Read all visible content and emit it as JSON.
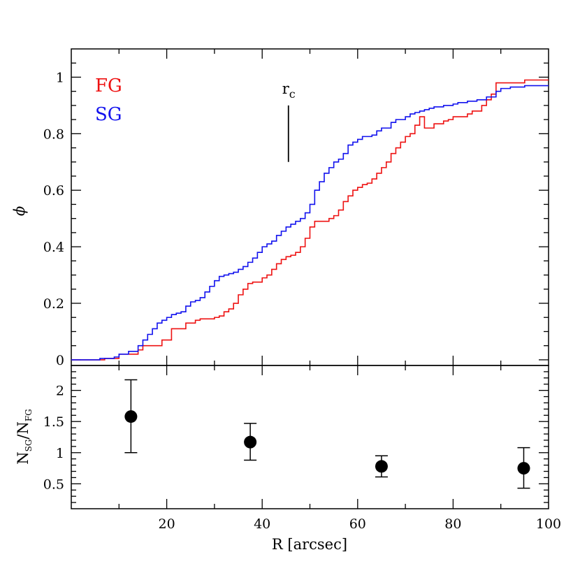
{
  "chart_data": [
    {
      "type": "line",
      "panel": "top",
      "ylabel": "ϕ",
      "xlim": [
        0,
        100
      ],
      "ylim": [
        -0.02,
        1.1
      ],
      "x_ticks": [
        20,
        40,
        60,
        80,
        100
      ],
      "y_ticks": [
        0,
        0.2,
        0.4,
        0.6,
        0.8,
        1
      ],
      "y_tick_labels": [
        "0",
        "0.2",
        "0.4",
        "0.6",
        "0.8",
        "1"
      ],
      "legend_placement": "top-left",
      "annotation": {
        "label_main": "r",
        "label_sub": "c",
        "x": 45.5,
        "y_from": 0.7,
        "y_to": 0.9
      },
      "series": [
        {
          "name": "FG",
          "color": "#ee1111",
          "step": true,
          "x": [
            0,
            7,
            10,
            14,
            15,
            19,
            21,
            24,
            26,
            27,
            30,
            31,
            32,
            33,
            34,
            35,
            36,
            37,
            38,
            40,
            41,
            42,
            43,
            44,
            45,
            46,
            47,
            48,
            49,
            50,
            51,
            54,
            55,
            56,
            57,
            58,
            59,
            60,
            61,
            62,
            63,
            64,
            65,
            66,
            67,
            68,
            69,
            70,
            71,
            72,
            73,
            74,
            76,
            78,
            79,
            80,
            83,
            84,
            86,
            87,
            88,
            89,
            92,
            95,
            100
          ],
          "y": [
            0,
            0.005,
            0.02,
            0.035,
            0.05,
            0.07,
            0.11,
            0.13,
            0.14,
            0.145,
            0.15,
            0.155,
            0.17,
            0.18,
            0.2,
            0.23,
            0.25,
            0.27,
            0.275,
            0.29,
            0.3,
            0.32,
            0.34,
            0.355,
            0.365,
            0.37,
            0.38,
            0.4,
            0.43,
            0.47,
            0.49,
            0.5,
            0.51,
            0.53,
            0.56,
            0.58,
            0.6,
            0.61,
            0.62,
            0.625,
            0.64,
            0.66,
            0.68,
            0.7,
            0.73,
            0.75,
            0.77,
            0.79,
            0.8,
            0.83,
            0.86,
            0.82,
            0.835,
            0.845,
            0.85,
            0.86,
            0.87,
            0.88,
            0.9,
            0.92,
            0.94,
            0.98,
            0.98,
            0.99,
            0.99
          ]
        },
        {
          "name": "SG",
          "color": "#1111ee",
          "step": true,
          "x": [
            0,
            6,
            9,
            10,
            12,
            14,
            15,
            16,
            17,
            18,
            19,
            20,
            21,
            22,
            23,
            24,
            25,
            26,
            27,
            28,
            29,
            30,
            31,
            32,
            33,
            34,
            35,
            36,
            37,
            38,
            39,
            40,
            41,
            42,
            43,
            44,
            45,
            46,
            47,
            48,
            49,
            50,
            51,
            52,
            53,
            54,
            55,
            56,
            57,
            58,
            59,
            60,
            61,
            63,
            64,
            65,
            67,
            68,
            70,
            71,
            72,
            73,
            74,
            75,
            76,
            78,
            80,
            81,
            83,
            85,
            87,
            89,
            90,
            92,
            95,
            100
          ],
          "y": [
            0,
            0.005,
            0.01,
            0.02,
            0.03,
            0.05,
            0.07,
            0.09,
            0.11,
            0.13,
            0.14,
            0.15,
            0.16,
            0.165,
            0.17,
            0.19,
            0.205,
            0.21,
            0.22,
            0.24,
            0.26,
            0.28,
            0.295,
            0.3,
            0.305,
            0.31,
            0.32,
            0.33,
            0.345,
            0.36,
            0.38,
            0.4,
            0.41,
            0.42,
            0.44,
            0.455,
            0.47,
            0.48,
            0.49,
            0.5,
            0.52,
            0.55,
            0.6,
            0.63,
            0.66,
            0.68,
            0.7,
            0.71,
            0.73,
            0.76,
            0.77,
            0.78,
            0.79,
            0.795,
            0.81,
            0.82,
            0.84,
            0.85,
            0.86,
            0.87,
            0.875,
            0.88,
            0.885,
            0.89,
            0.895,
            0.9,
            0.905,
            0.91,
            0.915,
            0.92,
            0.93,
            0.95,
            0.96,
            0.965,
            0.97,
            0.97
          ]
        }
      ]
    },
    {
      "type": "scatter",
      "panel": "bottom",
      "xlabel": "R [arcsec]",
      "ylabel_main": "N",
      "ylabel_sub1": "SG",
      "ylabel_sep": "/N",
      "ylabel_sub2": "FG",
      "xlim": [
        0,
        100
      ],
      "ylim": [
        0.1,
        2.4
      ],
      "x_ticks": [
        20,
        40,
        60,
        80,
        100
      ],
      "x_tick_labels": [
        "20",
        "40",
        "60",
        "80",
        "100"
      ],
      "y_ticks": [
        0.5,
        1,
        1.5,
        2
      ],
      "y_tick_labels": [
        "0.5",
        "1",
        "1.5",
        "2"
      ],
      "points": [
        {
          "x": 12.5,
          "y": 1.58,
          "y_low": 1.0,
          "y_high": 2.17
        },
        {
          "x": 37.5,
          "y": 1.17,
          "y_low": 0.88,
          "y_high": 1.47
        },
        {
          "x": 65.0,
          "y": 0.78,
          "y_low": 0.61,
          "y_high": 0.95
        },
        {
          "x": 94.8,
          "y": 0.75,
          "y_low": 0.43,
          "y_high": 1.08
        }
      ]
    }
  ]
}
